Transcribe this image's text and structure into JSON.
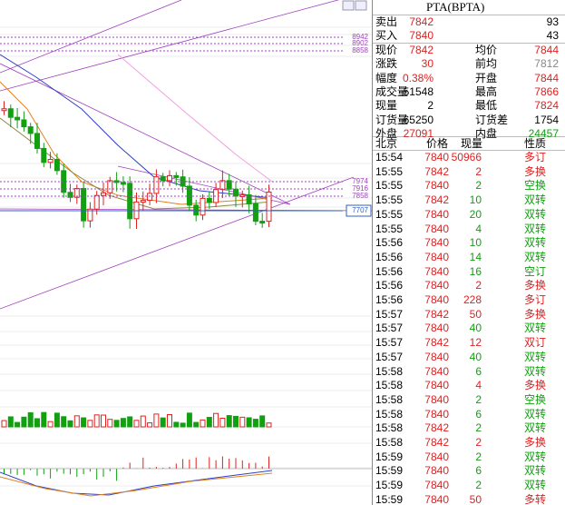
{
  "header": {
    "title": "PTA(BPTA)"
  },
  "book": [
    {
      "label": "卖出",
      "price": "7842",
      "volume": "93"
    },
    {
      "label": "买入",
      "price": "7840",
      "volume": "43"
    }
  ],
  "quote": [
    [
      {
        "label": "现价",
        "value": "7842"
      },
      {
        "label": "均价",
        "value": "7844"
      }
    ],
    [
      {
        "label": "涨跌",
        "value": "30"
      },
      {
        "label": "前均",
        "value": "7812"
      }
    ],
    [
      {
        "label": "幅度",
        "value": "0.38%"
      },
      {
        "label": "开盘",
        "value": "7844"
      }
    ],
    [
      {
        "label": "成交量",
        "value": "51548"
      },
      {
        "label": "最高",
        "value": "7866"
      }
    ],
    [
      {
        "label": "现量",
        "value": "2"
      },
      {
        "label": "最低",
        "value": "7824"
      }
    ],
    [
      {
        "label": "订货量",
        "value": "65250"
      },
      {
        "label": "订货差",
        "value": "1754"
      }
    ],
    [
      {
        "label": "外盘",
        "value": "27091"
      },
      {
        "label": "内盘",
        "value": "24457"
      }
    ]
  ],
  "ticks": {
    "columns": [
      "北京",
      "价格",
      "现量",
      "性质"
    ],
    "rows": [
      [
        "15:54",
        "7840",
        "50966",
        "多订"
      ],
      [
        "15:55",
        "7842",
        "2",
        "多换"
      ],
      [
        "15:55",
        "7840",
        "2",
        "空换"
      ],
      [
        "15:55",
        "7842",
        "10",
        "双转"
      ],
      [
        "15:55",
        "7840",
        "20",
        "双转"
      ],
      [
        "15:55",
        "7840",
        "4",
        "双转"
      ],
      [
        "15:56",
        "7840",
        "10",
        "双转"
      ],
      [
        "15:56",
        "7840",
        "14",
        "双转"
      ],
      [
        "15:56",
        "7840",
        "16",
        "空订"
      ],
      [
        "15:56",
        "7840",
        "2",
        "多换"
      ],
      [
        "15:56",
        "7840",
        "228",
        "多订"
      ],
      [
        "15:57",
        "7842",
        "50",
        "多换"
      ],
      [
        "15:57",
        "7840",
        "40",
        "双转"
      ],
      [
        "15:57",
        "7842",
        "12",
        "双订"
      ],
      [
        "15:57",
        "7840",
        "40",
        "双转"
      ],
      [
        "15:58",
        "7840",
        "6",
        "双转"
      ],
      [
        "15:58",
        "7840",
        "4",
        "多换"
      ],
      [
        "15:58",
        "7840",
        "2",
        "空换"
      ],
      [
        "15:58",
        "7840",
        "6",
        "双转"
      ],
      [
        "15:58",
        "7842",
        "2",
        "双转"
      ],
      [
        "15:58",
        "7842",
        "2",
        "多换"
      ],
      [
        "15:59",
        "7840",
        "2",
        "双转"
      ],
      [
        "15:59",
        "7840",
        "6",
        "双转"
      ],
      [
        "15:59",
        "7840",
        "2",
        "双转"
      ],
      [
        "15:59",
        "7840",
        "50",
        "多转"
      ]
    ]
  },
  "chart": {
    "levels": [
      "8942",
      "8902",
      "8858",
      "7974",
      "7916",
      "7858",
      "7707"
    ]
  }
}
